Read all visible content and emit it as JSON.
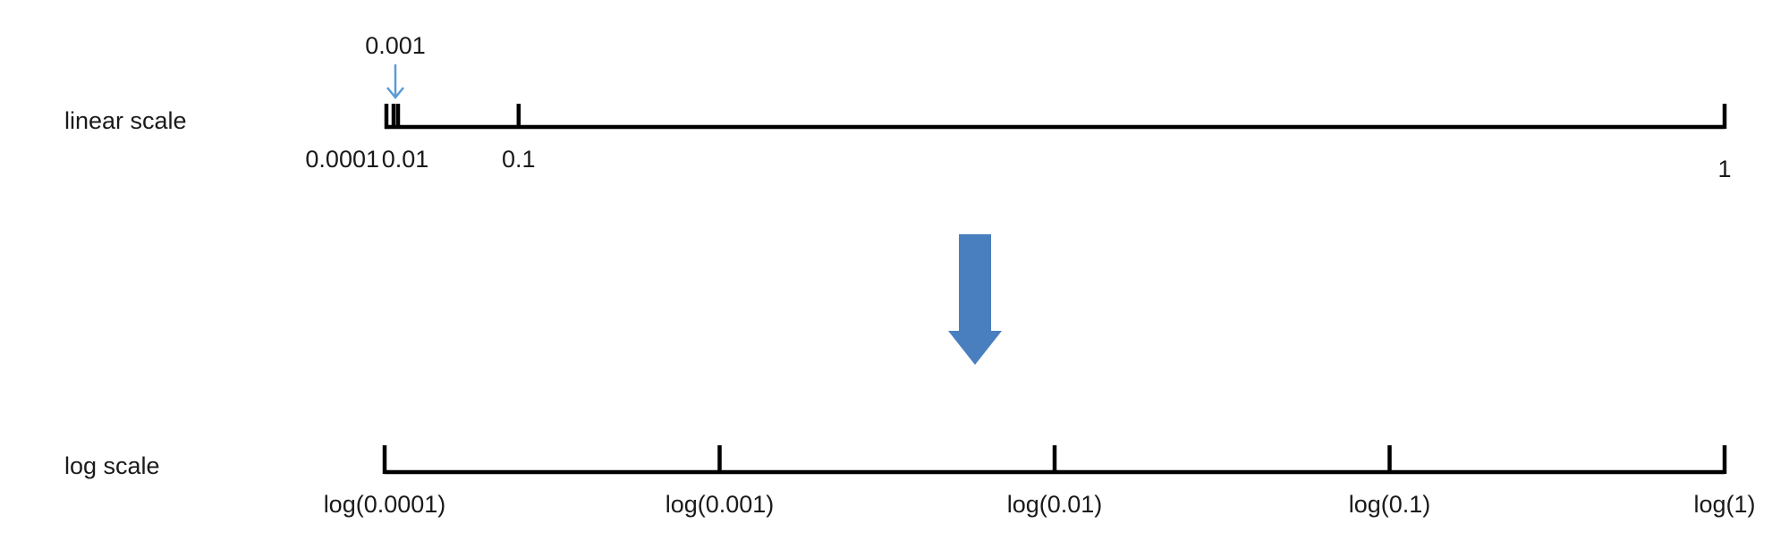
{
  "linear_scale": {
    "label": "linear scale",
    "domain": [
      0,
      1
    ],
    "ticks": [
      {
        "value": 0.0001,
        "label": "0.0001",
        "label_side": "left"
      },
      {
        "value": 0.001,
        "label": "0.001",
        "label_side": "callout"
      },
      {
        "value": 0.01,
        "label": "0.01",
        "label_side": "below"
      },
      {
        "value": 0.1,
        "label": "0.1",
        "label_side": "below"
      },
      {
        "value": 1,
        "label": "1",
        "label_side": "below"
      }
    ]
  },
  "log_scale": {
    "label": "log scale",
    "domain_exponent": [
      -4,
      0
    ],
    "ticks": [
      {
        "exponent": -4,
        "label": "log(0.0001)"
      },
      {
        "exponent": -3,
        "label": "log(0.001)"
      },
      {
        "exponent": -2,
        "label": "log(0.01)"
      },
      {
        "exponent": -1,
        "label": "log(0.1)"
      },
      {
        "exponent": 0,
        "label": "log(1)"
      }
    ]
  },
  "colors": {
    "axis": "#000000",
    "text": "#1a1a1a",
    "transform_arrow": "#4a7fbf",
    "callout_arrow": "#5b9bd5"
  },
  "icons": {
    "transform_arrow": "down-arrow-icon",
    "callout_arrow": "down-arrow-icon"
  }
}
